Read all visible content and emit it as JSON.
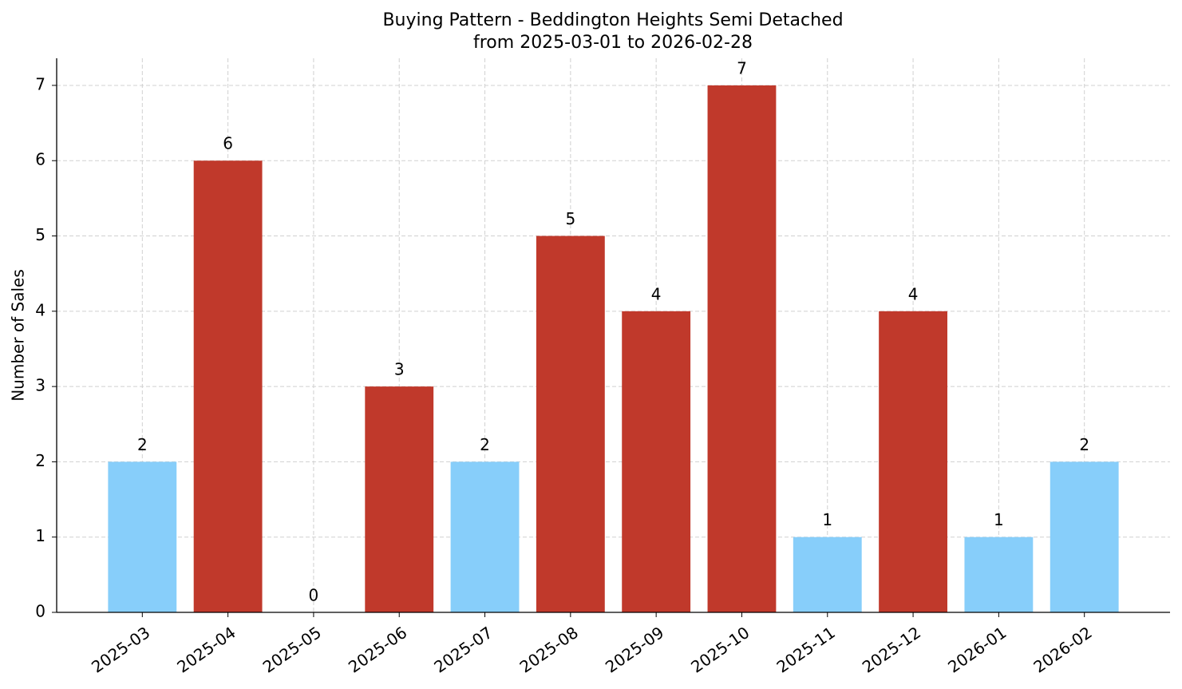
{
  "chart_data": {
    "type": "bar",
    "title": "Buying Pattern - Beddington Heights Semi Detached",
    "subtitle": "from 2025-03-01 to 2026-02-28",
    "y_label": "Number of Sales",
    "categories": [
      "2025-03",
      "2025-04",
      "2025-05",
      "2025-06",
      "2025-07",
      "2025-08",
      "2025-09",
      "2025-10",
      "2025-11",
      "2025-12",
      "2026-01",
      "2026-02"
    ],
    "values": [
      2,
      6,
      0,
      3,
      2,
      5,
      4,
      7,
      1,
      4,
      1,
      2
    ],
    "colors": [
      "#87cefa",
      "#c0392b",
      "#87cefa",
      "#c0392b",
      "#87cefa",
      "#c0392b",
      "#c0392b",
      "#c0392b",
      "#87cefa",
      "#c0392b",
      "#87cefa",
      "#87cefa"
    ],
    "ylim": [
      0,
      7.36
    ],
    "yticks": [
      0,
      1,
      2,
      3,
      4,
      5,
      6,
      7
    ],
    "grid": true
  }
}
